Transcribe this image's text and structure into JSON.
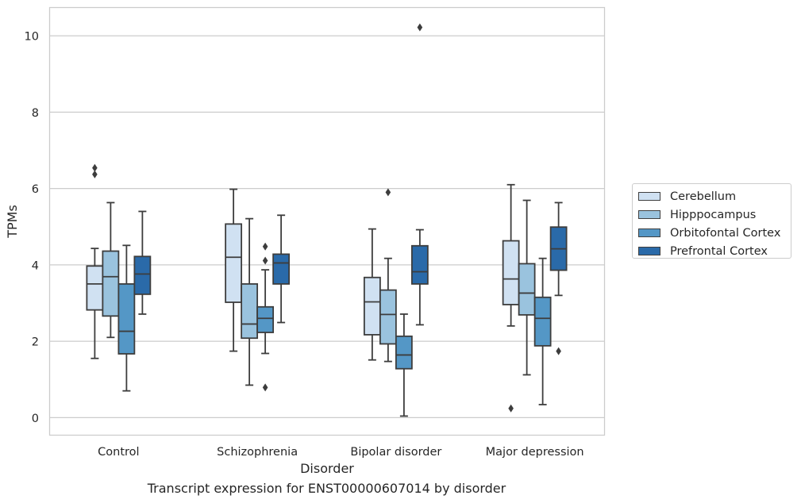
{
  "chart_data": {
    "type": "box",
    "xlabel": "Disorder",
    "ylabel": "TPMs",
    "caption": "Transcript expression for ENST00000607014 by disorder",
    "categories": [
      "Control",
      "Schizophrenia",
      "Bipolar disorder",
      "Major depression"
    ],
    "ylim": [
      -0.45,
      10.75
    ],
    "yticks": [
      0,
      2,
      4,
      6,
      8,
      10
    ],
    "grid": "horizontal",
    "legend_position": "right",
    "series": [
      {
        "name": "Cerebellum",
        "color": "#d0e1f2",
        "boxes": [
          {
            "whisker_low": 1.55,
            "q1": 2.82,
            "median": 3.5,
            "q3": 3.97,
            "whisker_high": 4.43,
            "outliers": [
              6.37,
              6.54
            ]
          },
          {
            "whisker_low": 1.74,
            "q1": 3.02,
            "median": 4.2,
            "q3": 5.07,
            "whisker_high": 5.98,
            "outliers": []
          },
          {
            "whisker_low": 1.51,
            "q1": 2.17,
            "median": 3.03,
            "q3": 3.67,
            "whisker_high": 4.94,
            "outliers": []
          },
          {
            "whisker_low": 2.4,
            "q1": 2.96,
            "median": 3.63,
            "q3": 4.63,
            "whisker_high": 6.1,
            "outliers": [
              0.24
            ]
          }
        ]
      },
      {
        "name": "Hipppocampus",
        "color": "#9ac3de",
        "boxes": [
          {
            "whisker_low": 2.1,
            "q1": 2.66,
            "median": 3.69,
            "q3": 4.36,
            "whisker_high": 5.63,
            "outliers": []
          },
          {
            "whisker_low": 0.85,
            "q1": 2.08,
            "median": 2.45,
            "q3": 3.5,
            "whisker_high": 5.21,
            "outliers": []
          },
          {
            "whisker_low": 1.47,
            "q1": 1.93,
            "median": 2.7,
            "q3": 3.34,
            "whisker_high": 4.17,
            "outliers": [
              5.9
            ]
          },
          {
            "whisker_low": 1.12,
            "q1": 2.69,
            "median": 3.26,
            "q3": 4.03,
            "whisker_high": 5.69,
            "outliers": []
          }
        ]
      },
      {
        "name": "Orbitofontal Cortex",
        "color": "#5497c6",
        "boxes": [
          {
            "whisker_low": 0.7,
            "q1": 1.67,
            "median": 2.26,
            "q3": 3.5,
            "whisker_high": 4.51,
            "outliers": []
          },
          {
            "whisker_low": 1.68,
            "q1": 2.23,
            "median": 2.6,
            "q3": 2.9,
            "whisker_high": 3.87,
            "outliers": [
              4.11,
              4.48,
              0.79
            ]
          },
          {
            "whisker_low": 0.04,
            "q1": 1.28,
            "median": 1.64,
            "q3": 2.13,
            "whisker_high": 2.71,
            "outliers": []
          },
          {
            "whisker_low": 0.34,
            "q1": 1.88,
            "median": 2.6,
            "q3": 3.15,
            "whisker_high": 4.17,
            "outliers": []
          }
        ]
      },
      {
        "name": "Prefrontal Cortex",
        "color": "#2a6aa9",
        "boxes": [
          {
            "whisker_low": 2.71,
            "q1": 3.23,
            "median": 3.76,
            "q3": 4.22,
            "whisker_high": 5.4,
            "outliers": []
          },
          {
            "whisker_low": 2.49,
            "q1": 3.5,
            "median": 4.05,
            "q3": 4.28,
            "whisker_high": 5.3,
            "outliers": []
          },
          {
            "whisker_low": 2.43,
            "q1": 3.5,
            "median": 3.82,
            "q3": 4.5,
            "whisker_high": 4.92,
            "outliers": [
              10.22
            ]
          },
          {
            "whisker_low": 3.2,
            "q1": 3.86,
            "median": 4.42,
            "q3": 4.99,
            "whisker_high": 5.63,
            "outliers": [
              1.74
            ]
          }
        ]
      }
    ]
  }
}
